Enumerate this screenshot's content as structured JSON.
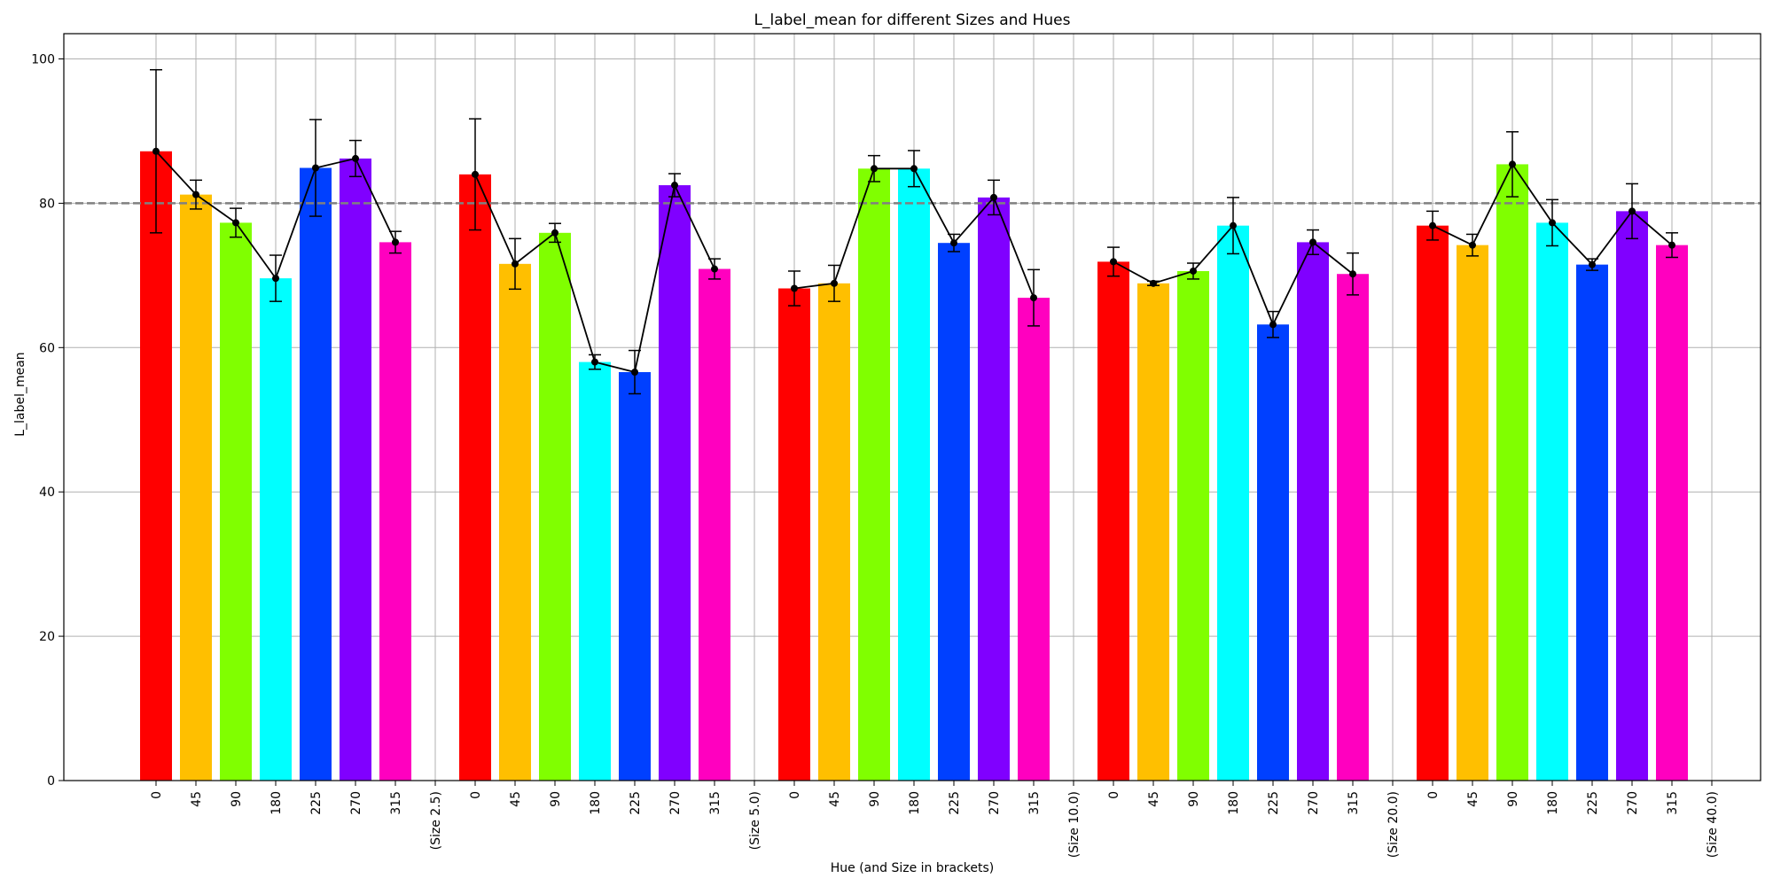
{
  "chart_data": {
    "type": "bar",
    "title": "L_label_mean for different Sizes and Hues",
    "xlabel": "Hue (and Size in brackets)",
    "ylabel": "L_label_mean",
    "ylim": [
      0,
      103.5
    ],
    "yticks": [
      0,
      20,
      40,
      60,
      80,
      100
    ],
    "grid": true,
    "reference_line": 80,
    "hue_colors": {
      "0": "#ff0000",
      "45": "#ffbf00",
      "90": "#80ff00",
      "180": "#00ffff",
      "225": "#0040ff",
      "270": "#8000ff",
      "315": "#ff00bf"
    },
    "line_color": "#000000",
    "reference_line_color": "#808080",
    "groups": [
      {
        "size_label": "(Size 2.5)",
        "hues": [
          "0",
          "45",
          "90",
          "180",
          "225",
          "270",
          "315"
        ],
        "values": [
          87.2,
          81.2,
          77.3,
          69.6,
          84.9,
          86.2,
          74.6
        ],
        "errors": [
          11.3,
          2.0,
          2.0,
          3.2,
          6.7,
          2.5,
          1.5
        ]
      },
      {
        "size_label": "(Size 5.0)",
        "hues": [
          "0",
          "45",
          "90",
          "180",
          "225",
          "270",
          "315"
        ],
        "values": [
          84.0,
          71.6,
          75.9,
          58.0,
          56.6,
          82.5,
          70.9
        ],
        "errors": [
          7.7,
          3.5,
          1.3,
          1.0,
          3.0,
          1.6,
          1.4
        ]
      },
      {
        "size_label": "(Size 10.0)",
        "hues": [
          "0",
          "45",
          "90",
          "180",
          "225",
          "270",
          "315"
        ],
        "values": [
          68.2,
          68.9,
          84.8,
          84.8,
          74.5,
          80.8,
          66.9
        ],
        "errors": [
          2.4,
          2.5,
          1.8,
          2.5,
          1.2,
          2.4,
          3.9
        ]
      },
      {
        "size_label": "(Size 20.0)",
        "hues": [
          "0",
          "45",
          "90",
          "180",
          "225",
          "270",
          "315"
        ],
        "values": [
          71.9,
          68.9,
          70.6,
          76.9,
          63.2,
          74.6,
          70.2
        ],
        "errors": [
          2.0,
          0.3,
          1.1,
          3.9,
          1.8,
          1.7,
          2.9
        ]
      },
      {
        "size_label": "(Size 40.0)",
        "hues": [
          "0",
          "45",
          "90",
          "180",
          "225",
          "270",
          "315"
        ],
        "values": [
          76.9,
          74.2,
          85.4,
          77.3,
          71.5,
          78.9,
          74.2
        ],
        "errors": [
          2.0,
          1.5,
          4.5,
          3.2,
          0.8,
          3.8,
          1.7
        ]
      }
    ]
  }
}
